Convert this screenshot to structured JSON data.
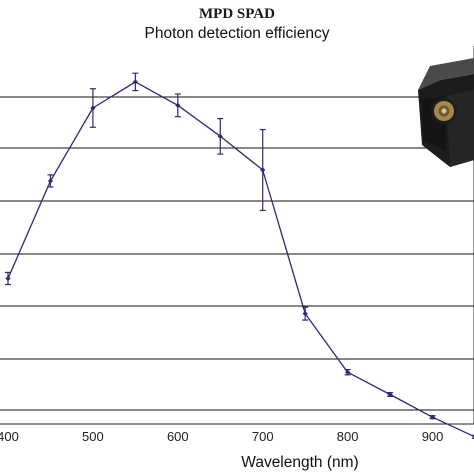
{
  "chart_data": {
    "type": "line",
    "title": "MPD SPAD",
    "subtitle": "Photon detection efficiency",
    "xlabel": "Wavelength (nm)",
    "ylabel": "",
    "xticks": [
      "400",
      "500",
      "600",
      "700",
      "800",
      "900"
    ],
    "xlim": [
      400,
      950
    ],
    "ylim": [
      0,
      1
    ],
    "grid": true,
    "series": [
      {
        "x": [
          400,
          450,
          500,
          550,
          600,
          650,
          700,
          750,
          800,
          850,
          900,
          950
        ],
        "y": [
          0.385,
          0.643,
          0.836,
          0.905,
          0.843,
          0.761,
          0.672,
          0.292,
          0.137,
          0.078,
          0.018,
          -0.034
        ],
        "err": [
          0.016,
          0.016,
          0.051,
          0.023,
          0.03,
          0.047,
          0.107,
          0.017,
          0.007,
          0.005,
          0.004,
          0.004
        ],
        "color": "#2a2a78"
      }
    ]
  },
  "inset": {
    "icon": "spad-module-photo-icon"
  }
}
